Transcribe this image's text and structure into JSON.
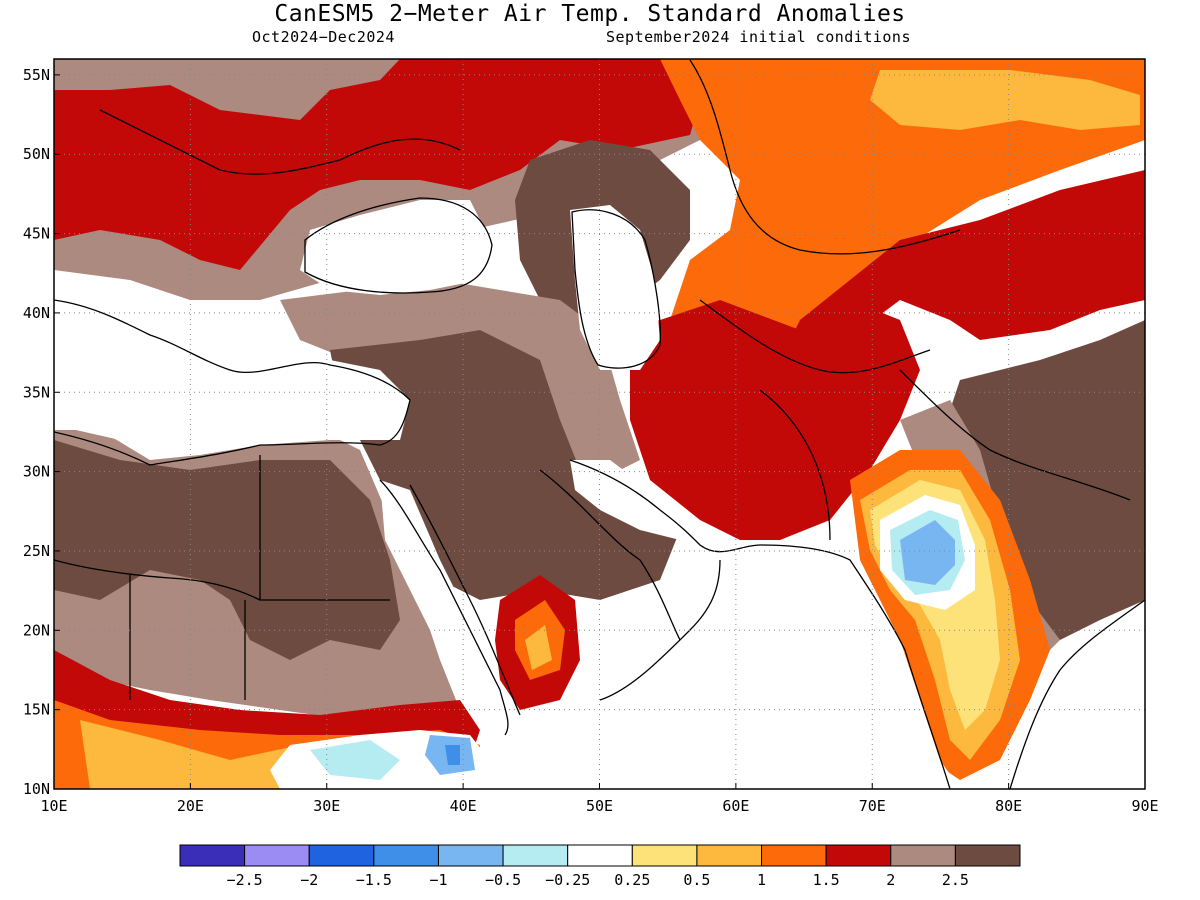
{
  "header": {
    "title": "CanESM5 2−Meter Air Temp. Standard Anomalies",
    "period": "Oct2024−Dec2024",
    "init": "September2024 initial conditions"
  },
  "map": {
    "lon_range": [
      10,
      90
    ],
    "lat_range": [
      10,
      56
    ],
    "lon_ticks": [
      {
        "lon": 10,
        "label": "10E"
      },
      {
        "lon": 20,
        "label": "20E"
      },
      {
        "lon": 30,
        "label": "30E"
      },
      {
        "lon": 40,
        "label": "40E"
      },
      {
        "lon": 50,
        "label": "50E"
      },
      {
        "lon": 60,
        "label": "60E"
      },
      {
        "lon": 70,
        "label": "70E"
      },
      {
        "lon": 80,
        "label": "80E"
      },
      {
        "lon": 90,
        "label": "90E"
      }
    ],
    "lat_ticks": [
      {
        "lat": 55,
        "label": "55N"
      },
      {
        "lat": 50,
        "label": "50N"
      },
      {
        "lat": 45,
        "label": "45N"
      },
      {
        "lat": 40,
        "label": "40N"
      },
      {
        "lat": 35,
        "label": "35N"
      },
      {
        "lat": 30,
        "label": "30N"
      },
      {
        "lat": 25,
        "label": "25N"
      },
      {
        "lat": 20,
        "label": "20N"
      },
      {
        "lat": 15,
        "label": "15N"
      },
      {
        "lat": 10,
        "label": "10N"
      }
    ],
    "gridlines": "dotted"
  },
  "colorbar": {
    "colors": [
      "#3a2db8",
      "#9a8cf2",
      "#1f63e0",
      "#3f8ee8",
      "#78b6f2",
      "#b4ecf2",
      "#ffffff",
      "#fde27a",
      "#fdb83e",
      "#fc6a0a",
      "#c30808",
      "#ad8a80",
      "#6d4b41"
    ],
    "labels": [
      "−2.5",
      "−2",
      "−1.5",
      "−1",
      "−0.5",
      "−0.25",
      "0.25",
      "0.5",
      "1",
      "1.5",
      "2",
      "2.5"
    ]
  },
  "palette": {
    "brown_dark": "#6d4b41",
    "brown_light": "#ad8a80",
    "red": "#c30808",
    "orange": "#fc6a0a",
    "light_orange": "#fdb83e",
    "yellow": "#fde27a",
    "pale_cyan": "#b4ecf2",
    "light_blue": "#78b6f2",
    "blue": "#3f8ee8",
    "white": "#ffffff"
  }
}
